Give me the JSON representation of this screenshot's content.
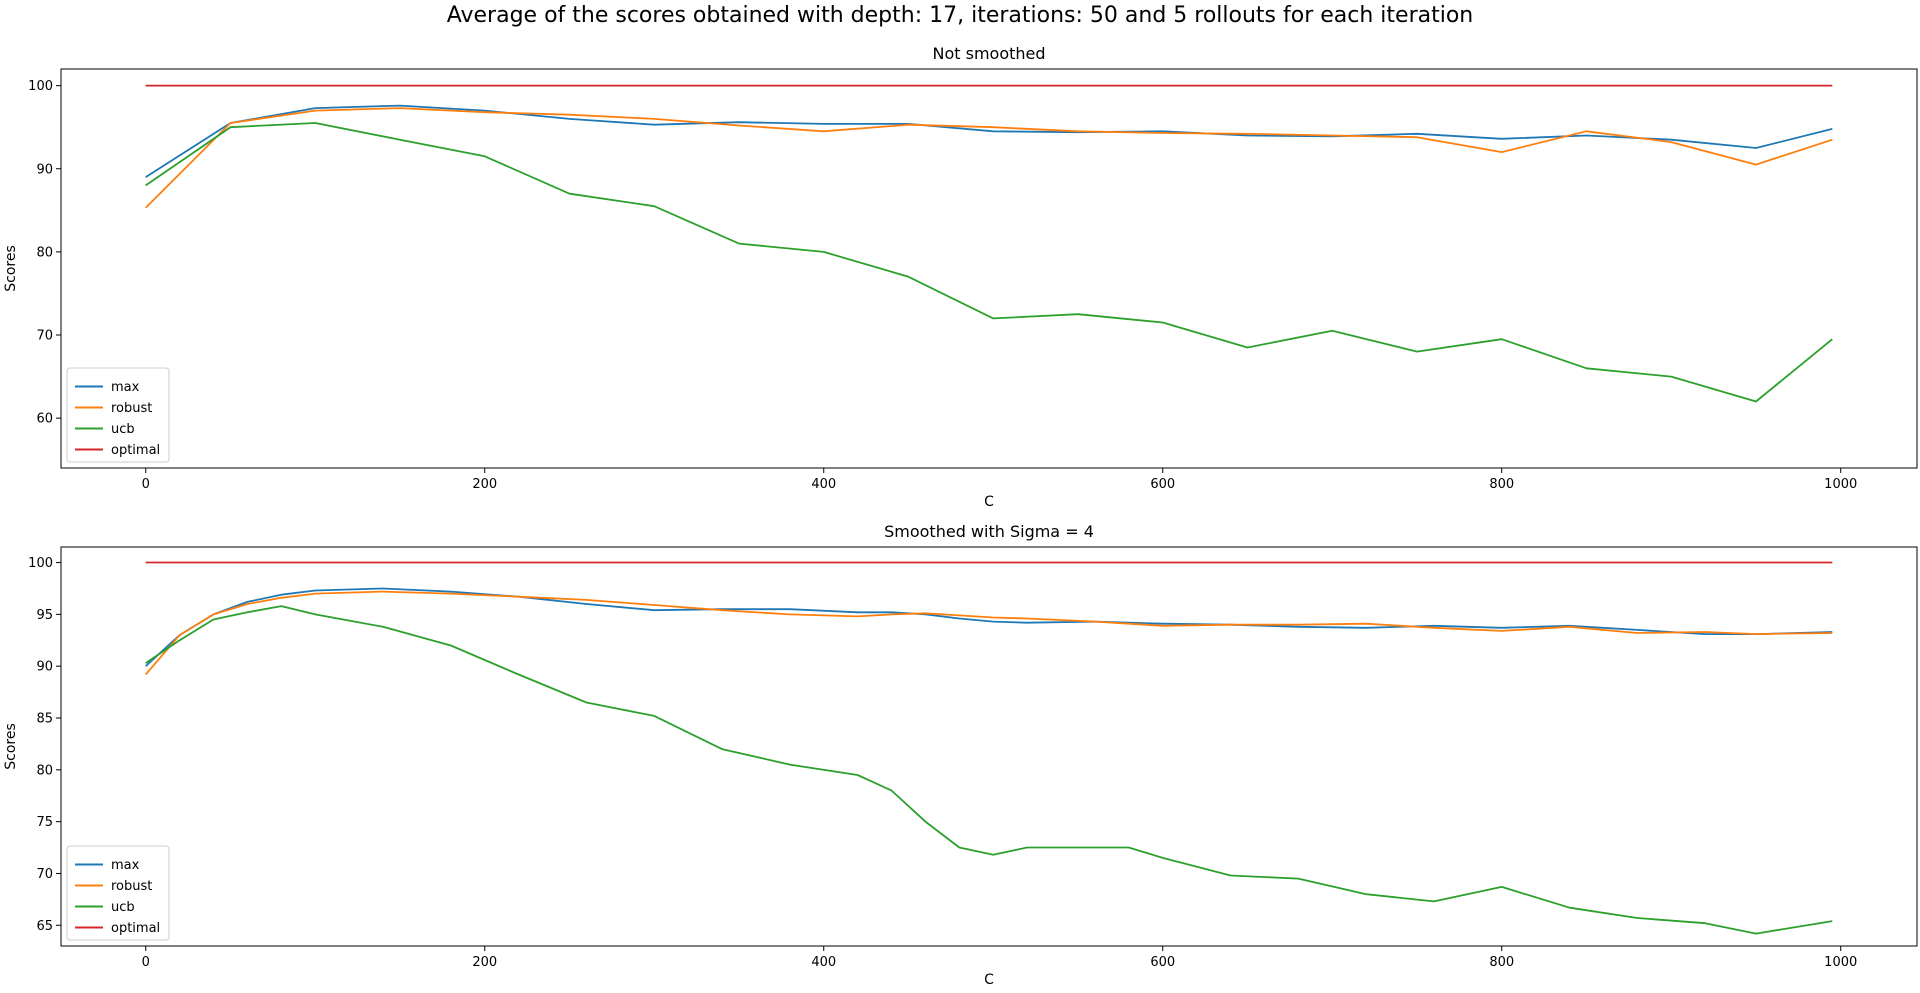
{
  "figure": {
    "suptitle": "Average of the scores obtained with depth: 17, iterations: 50 and 5 rollouts for each iteration"
  },
  "colors": {
    "max": "#1f77b4",
    "robust": "#ff7f0e",
    "ucb": "#2ca02c",
    "optimal": "#d62728"
  },
  "chart_data": [
    {
      "type": "line",
      "title": "Not smoothed",
      "xlabel": "C",
      "ylabel": "Scores",
      "xlim": [
        -50,
        1045
      ],
      "ylim": [
        54,
        102
      ],
      "xticks": [
        0,
        200,
        400,
        600,
        800,
        1000
      ],
      "yticks": [
        60,
        70,
        80,
        90,
        100
      ],
      "legend_position": "lower-left",
      "grid": false,
      "x": [
        0,
        50,
        100,
        150,
        200,
        250,
        300,
        350,
        400,
        450,
        500,
        550,
        600,
        650,
        700,
        750,
        800,
        850,
        900,
        950,
        995
      ],
      "series": [
        {
          "name": "max",
          "color_key": "max",
          "values": [
            89.0,
            95.5,
            97.3,
            97.6,
            97.0,
            96.0,
            95.3,
            95.6,
            95.4,
            95.4,
            94.5,
            94.4,
            94.5,
            94.0,
            93.9,
            94.2,
            93.6,
            94.0,
            93.5,
            92.5,
            94.8
          ]
        },
        {
          "name": "robust",
          "color_key": "robust",
          "values": [
            85.3,
            95.5,
            97.0,
            97.3,
            96.8,
            96.5,
            96.0,
            95.2,
            94.5,
            95.3,
            95.0,
            94.5,
            94.3,
            94.2,
            94.0,
            93.8,
            92.0,
            94.5,
            93.2,
            90.5,
            93.5
          ]
        },
        {
          "name": "ucb",
          "color_key": "ucb",
          "values": [
            88.0,
            95.0,
            95.5,
            93.5,
            91.5,
            87.0,
            85.5,
            81.0,
            80.0,
            77.0,
            72.0,
            72.5,
            71.5,
            68.5,
            70.5,
            68.0,
            69.5,
            66.0,
            65.0,
            62.0,
            69.5
          ]
        },
        {
          "name": "optimal",
          "color_key": "optimal",
          "values": [
            100,
            100,
            100,
            100,
            100,
            100,
            100,
            100,
            100,
            100,
            100,
            100,
            100,
            100,
            100,
            100,
            100,
            100,
            100,
            100,
            100
          ]
        }
      ]
    },
    {
      "type": "line",
      "title": "Smoothed with Sigma = 4",
      "xlabel": "C",
      "ylabel": "Scores",
      "xlim": [
        -50,
        1045
      ],
      "ylim": [
        63,
        101.5
      ],
      "xticks": [
        0,
        200,
        400,
        600,
        800,
        1000
      ],
      "yticks": [
        65,
        70,
        75,
        80,
        85,
        90,
        95,
        100
      ],
      "legend_position": "lower-left",
      "grid": false,
      "x": [
        0,
        20,
        40,
        60,
        80,
        100,
        140,
        180,
        220,
        260,
        300,
        340,
        380,
        420,
        440,
        460,
        480,
        500,
        520,
        560,
        580,
        600,
        640,
        680,
        720,
        760,
        800,
        840,
        880,
        920,
        950,
        995
      ],
      "series": [
        {
          "name": "max",
          "color_key": "max",
          "values": [
            90.0,
            93.0,
            95.0,
            96.2,
            96.9,
            97.3,
            97.5,
            97.2,
            96.7,
            96.0,
            95.4,
            95.5,
            95.5,
            95.2,
            95.2,
            95.0,
            94.6,
            94.3,
            94.2,
            94.3,
            94.2,
            94.1,
            94.0,
            93.8,
            93.7,
            93.9,
            93.7,
            93.9,
            93.5,
            93.1,
            93.1,
            93.3
          ]
        },
        {
          "name": "robust",
          "color_key": "robust",
          "values": [
            89.2,
            93.0,
            95.0,
            96.0,
            96.6,
            97.0,
            97.2,
            97.0,
            96.7,
            96.4,
            95.9,
            95.4,
            95.0,
            94.8,
            95.0,
            95.1,
            94.9,
            94.7,
            94.6,
            94.3,
            94.1,
            93.9,
            94.0,
            94.0,
            94.1,
            93.7,
            93.4,
            93.8,
            93.2,
            93.3,
            93.1,
            93.2
          ]
        },
        {
          "name": "ucb",
          "color_key": "ucb",
          "values": [
            90.3,
            92.5,
            94.5,
            95.2,
            95.8,
            95.0,
            93.8,
            92.0,
            89.2,
            86.5,
            85.2,
            82.0,
            80.5,
            79.5,
            78.0,
            75.0,
            72.5,
            71.8,
            72.5,
            72.5,
            72.5,
            71.5,
            69.8,
            69.5,
            68.0,
            67.3,
            68.7,
            66.7,
            65.7,
            65.2,
            64.2,
            65.4
          ]
        },
        {
          "name": "optimal",
          "color_key": "optimal",
          "values": [
            100,
            100,
            100,
            100,
            100,
            100,
            100,
            100,
            100,
            100,
            100,
            100,
            100,
            100,
            100,
            100,
            100,
            100,
            100,
            100,
            100,
            100,
            100,
            100,
            100,
            100,
            100,
            100,
            100,
            100,
            100,
            100
          ]
        }
      ]
    }
  ]
}
